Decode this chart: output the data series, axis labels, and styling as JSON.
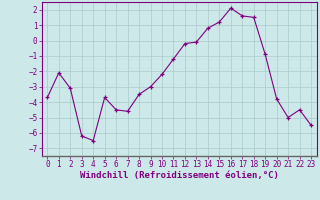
{
  "x": [
    0,
    1,
    2,
    3,
    4,
    5,
    6,
    7,
    8,
    9,
    10,
    11,
    12,
    13,
    14,
    15,
    16,
    17,
    18,
    19,
    20,
    21,
    22,
    23
  ],
  "y": [
    -3.7,
    -2.1,
    -3.1,
    -6.2,
    -6.5,
    -3.7,
    -4.5,
    -4.6,
    -3.5,
    -3.0,
    -2.2,
    -1.2,
    -0.2,
    -0.1,
    0.8,
    1.2,
    2.1,
    1.6,
    1.5,
    -0.9,
    -3.8,
    -5.0,
    -4.5,
    -5.5
  ],
  "line_color": "#800080",
  "marker": "+",
  "bg_color": "#cce8e8",
  "grid_color": "#aacccc",
  "xlabel": "Windchill (Refroidissement éolien,°C)",
  "ylim": [
    -7.5,
    2.5
  ],
  "xlim": [
    -0.5,
    23.5
  ],
  "xticks": [
    0,
    1,
    2,
    3,
    4,
    5,
    6,
    7,
    8,
    9,
    10,
    11,
    12,
    13,
    14,
    15,
    16,
    17,
    18,
    19,
    20,
    21,
    22,
    23
  ],
  "yticks": [
    -7,
    -6,
    -5,
    -4,
    -3,
    -2,
    -1,
    0,
    1,
    2
  ],
  "tick_fontsize": 5.5,
  "xlabel_fontsize": 6.5
}
